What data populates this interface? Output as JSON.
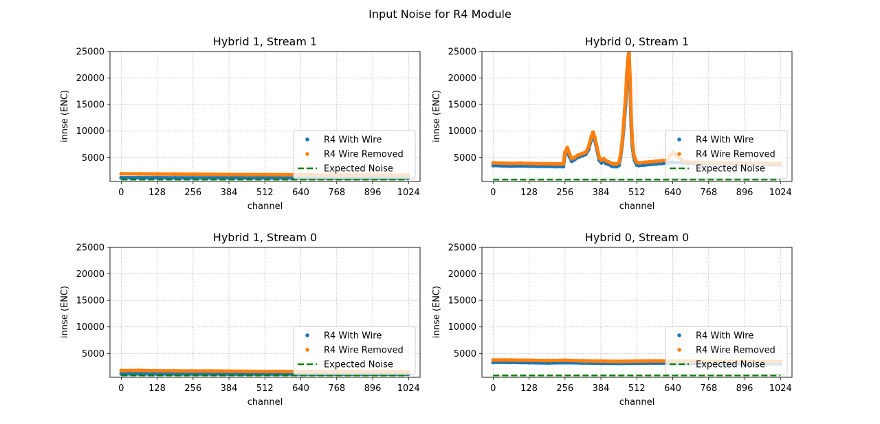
{
  "figure": {
    "suptitle": "Input Noise for R4 Module"
  },
  "colors": {
    "with_wire": "#1f77b4",
    "wire_removed": "#ff7f0e",
    "expected": "#008000"
  },
  "chart_data": [
    {
      "type": "scatter",
      "title": "Hybrid 1, Stream 1",
      "xlabel": "channel",
      "ylabel": "innse (ENC)",
      "xlim": [
        -40,
        1065
      ],
      "ylim": [
        500,
        25000
      ],
      "xticks": [
        0,
        128,
        256,
        384,
        512,
        640,
        768,
        896,
        1024
      ],
      "yticks": [
        5000,
        10000,
        15000,
        20000,
        25000
      ],
      "grid": true,
      "legend_position": "lower-right",
      "series": [
        {
          "name": "R4 With Wire",
          "kind": "scatter",
          "x": [
            0,
            64,
            128,
            192,
            256,
            320,
            384,
            448,
            512,
            576,
            640,
            704,
            768,
            832,
            896,
            960,
            1023
          ],
          "y": [
            1200,
            1200,
            1200,
            1190,
            1180,
            1180,
            1170,
            1170,
            1160,
            1160,
            1160,
            1150,
            1150,
            1150,
            1150,
            1140,
            1140
          ]
        },
        {
          "name": "R4 Wire Removed",
          "kind": "scatter",
          "x": [
            0,
            64,
            128,
            192,
            256,
            320,
            384,
            448,
            512,
            576,
            640,
            704,
            768,
            832,
            896,
            960,
            1023
          ],
          "y": [
            1950,
            1930,
            1900,
            1880,
            1860,
            1840,
            1800,
            1780,
            1780,
            1760,
            1740,
            1720,
            1700,
            1700,
            1690,
            1680,
            1680
          ]
        },
        {
          "name": "Expected Noise",
          "kind": "line",
          "x": [
            0,
            1023
          ],
          "y": [
            850,
            850
          ]
        }
      ]
    },
    {
      "type": "scatter",
      "title": "Hybrid 0, Stream 1",
      "xlabel": "channel",
      "ylabel": "innse (ENC)",
      "xlim": [
        -40,
        1065
      ],
      "ylim": [
        500,
        25000
      ],
      "xticks": [
        0,
        128,
        256,
        384,
        512,
        640,
        768,
        896,
        1024
      ],
      "yticks": [
        5000,
        10000,
        15000,
        20000,
        25000
      ],
      "grid": true,
      "legend_position": "lower-right",
      "series": [
        {
          "name": "R4 With Wire",
          "kind": "scatter",
          "x": [
            0,
            32,
            64,
            96,
            128,
            160,
            192,
            224,
            250,
            256,
            264,
            272,
            280,
            290,
            300,
            310,
            320,
            330,
            340,
            350,
            356,
            362,
            370,
            378,
            386,
            394,
            402,
            412,
            422,
            432,
            440,
            448,
            454,
            460,
            466,
            472,
            476,
            480,
            484,
            488,
            492,
            496,
            500,
            504,
            508,
            512,
            520,
            540,
            560,
            580,
            600,
            620,
            640,
            680,
            720,
            760,
            800,
            840,
            880,
            920,
            960,
            1000,
            1023
          ],
          "y": [
            3500,
            3450,
            3400,
            3450,
            3400,
            3350,
            3350,
            3300,
            3300,
            5500,
            6200,
            5200,
            4300,
            4600,
            5000,
            5200,
            5400,
            5600,
            6500,
            8500,
            9500,
            8300,
            6500,
            4500,
            4000,
            4300,
            3900,
            3700,
            3400,
            3300,
            3300,
            3500,
            5000,
            7500,
            11000,
            15000,
            19000,
            22000,
            24500,
            18000,
            11000,
            7000,
            5500,
            4500,
            4000,
            3600,
            3500,
            3600,
            3700,
            3800,
            3900,
            4000,
            4100,
            4000,
            3900,
            3850,
            3800,
            3750,
            3700,
            3700,
            3700,
            3650,
            3650
          ]
        },
        {
          "name": "R4 Wire Removed",
          "kind": "scatter",
          "x": [
            0,
            32,
            64,
            96,
            128,
            160,
            192,
            224,
            250,
            256,
            264,
            272,
            280,
            290,
            300,
            310,
            320,
            330,
            340,
            350,
            356,
            362,
            370,
            378,
            386,
            394,
            402,
            412,
            422,
            432,
            440,
            448,
            454,
            460,
            466,
            472,
            476,
            480,
            484,
            488,
            492,
            496,
            500,
            504,
            508,
            512,
            520,
            540,
            560,
            580,
            600,
            620,
            640,
            680,
            720,
            760,
            800,
            840,
            880,
            920,
            960,
            1000,
            1023
          ],
          "y": [
            4000,
            3950,
            3900,
            3950,
            3900,
            3850,
            3850,
            3800,
            3800,
            6000,
            6900,
            5700,
            4800,
            5000,
            5400,
            5600,
            5800,
            6000,
            7000,
            9000,
            9800,
            8800,
            7000,
            5000,
            4500,
            4800,
            4400,
            4200,
            3900,
            3800,
            3800,
            4000,
            5500,
            8000,
            12000,
            16500,
            20500,
            23500,
            25000,
            20000,
            12500,
            8000,
            6000,
            5000,
            4500,
            4100,
            4000,
            4100,
            4200,
            4300,
            4400,
            4500,
            6000,
            4200,
            4100,
            4050,
            4000,
            3950,
            3900,
            3900,
            3900,
            3850,
            3850
          ]
        },
        {
          "name": "Expected Noise",
          "kind": "line",
          "x": [
            0,
            1023
          ],
          "y": [
            850,
            850
          ]
        }
      ]
    },
    {
      "type": "scatter",
      "title": "Hybrid 1, Stream 0",
      "xlabel": "channel",
      "ylabel": "innse (ENC)",
      "xlim": [
        -40,
        1065
      ],
      "ylim": [
        500,
        25000
      ],
      "xticks": [
        0,
        128,
        256,
        384,
        512,
        640,
        768,
        896,
        1024
      ],
      "yticks": [
        5000,
        10000,
        15000,
        20000,
        25000
      ],
      "grid": true,
      "legend_position": "lower-right",
      "series": [
        {
          "name": "R4 With Wire",
          "kind": "scatter",
          "x": [
            0,
            64,
            128,
            192,
            256,
            320,
            384,
            448,
            512,
            576,
            640,
            704,
            768,
            832,
            896,
            960,
            1023
          ],
          "y": [
            1150,
            1150,
            1140,
            1140,
            1130,
            1130,
            1120,
            1120,
            1110,
            1110,
            1110,
            1100,
            1100,
            1100,
            1100,
            1090,
            1090
          ]
        },
        {
          "name": "R4 Wire Removed",
          "kind": "scatter",
          "x": [
            0,
            64,
            128,
            192,
            256,
            320,
            384,
            448,
            512,
            576,
            640,
            704,
            768,
            832,
            896,
            960,
            1023
          ],
          "y": [
            1750,
            1800,
            1720,
            1700,
            1680,
            1680,
            1650,
            1620,
            1600,
            1600,
            1590,
            1580,
            1570,
            1560,
            1560,
            1550,
            1550
          ]
        },
        {
          "name": "Expected Noise",
          "kind": "line",
          "x": [
            0,
            1023
          ],
          "y": [
            850,
            850
          ]
        }
      ]
    },
    {
      "type": "scatter",
      "title": "Hybrid 0, Stream 0",
      "xlabel": "channel",
      "ylabel": "innse (ENC)",
      "xlim": [
        -40,
        1065
      ],
      "ylim": [
        500,
        25000
      ],
      "xticks": [
        0,
        128,
        256,
        384,
        512,
        640,
        768,
        896,
        1024
      ],
      "yticks": [
        5000,
        10000,
        15000,
        20000,
        25000
      ],
      "grid": true,
      "legend_position": "lower-right",
      "series": [
        {
          "name": "R4 With Wire",
          "kind": "scatter",
          "x": [
            0,
            64,
            128,
            192,
            256,
            320,
            384,
            448,
            512,
            576,
            640,
            704,
            768,
            832,
            896,
            960,
            1023
          ],
          "y": [
            3300,
            3300,
            3250,
            3200,
            3250,
            3200,
            3150,
            3100,
            3150,
            3200,
            3150,
            3150,
            3100,
            3100,
            3100,
            3050,
            3050
          ]
        },
        {
          "name": "R4 Wire Removed",
          "kind": "scatter",
          "x": [
            0,
            64,
            128,
            192,
            256,
            320,
            384,
            448,
            512,
            576,
            640,
            704,
            768,
            832,
            896,
            960,
            1023
          ],
          "y": [
            3750,
            3750,
            3700,
            3650,
            3700,
            3600,
            3550,
            3500,
            3550,
            3600,
            3550,
            3550,
            3500,
            3500,
            3500,
            3450,
            3450
          ]
        },
        {
          "name": "Expected Noise",
          "kind": "line",
          "x": [
            0,
            1023
          ],
          "y": [
            850,
            850
          ]
        }
      ]
    }
  ]
}
